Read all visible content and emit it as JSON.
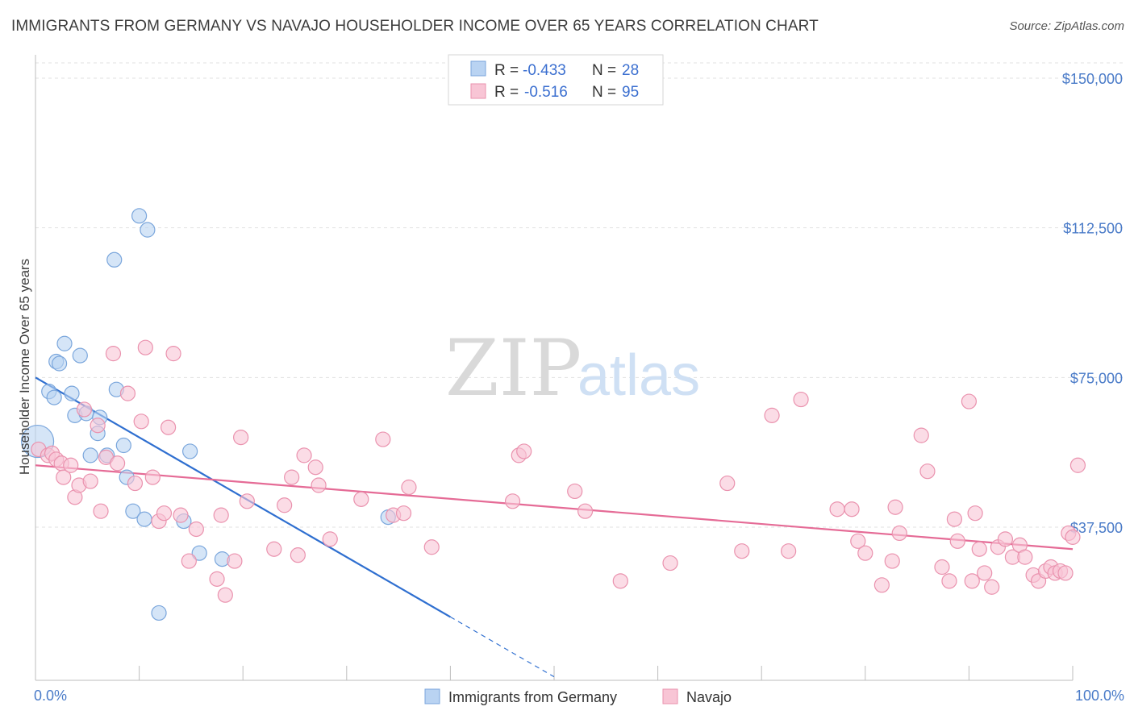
{
  "title": "IMMIGRANTS FROM GERMANY VS NAVAJO HOUSEHOLDER INCOME OVER 65 YEARS CORRELATION CHART",
  "source": "Source: ZipAtlas.com",
  "watermark": {
    "zip": "ZIP",
    "atlas": "atlas"
  },
  "colors": {
    "blue_fill": "#b9d3f2",
    "blue_stroke": "#7aa6dc",
    "blue_line": "#2f6fd0",
    "pink_fill": "#f8c5d5",
    "pink_stroke": "#ea92ae",
    "pink_line": "#e56b96",
    "grid": "#e1e1e1",
    "axis_text": "#4a7bc8"
  },
  "legend": {
    "rows": [
      {
        "r_label": "R =",
        "r_value": "-0.433",
        "n_label": "N =",
        "n_value": "28"
      },
      {
        "r_label": "R =",
        "r_value": "-0.516",
        "n_label": "N =",
        "n_value": "95"
      }
    ]
  },
  "bottom_legend": [
    "Immigrants from Germany",
    "Navajo"
  ],
  "chart_data": {
    "type": "scatter",
    "xlabel": "",
    "ylabel": "Householder Income Over 65 years",
    "xlim": [
      0,
      100
    ],
    "ylim": [
      0,
      155000
    ],
    "x_tick_labels": [
      "0.0%",
      "100.0%"
    ],
    "y_ticks": [
      37500,
      75000,
      112500,
      150000
    ],
    "y_tick_labels": [
      "$37,500",
      "$75,000",
      "$112,500",
      "$150,000"
    ],
    "grid": "horizontal dashed",
    "legend_position": "top-center",
    "series": [
      {
        "name": "Immigrants from Germany",
        "color": "blue",
        "R": -0.433,
        "N": 28,
        "trend": {
          "x": [
            0,
            40
          ],
          "y": [
            75000,
            15000
          ],
          "dashed_to": [
            50,
            0
          ]
        },
        "points": [
          [
            0.2,
            59000,
            3
          ],
          [
            1.3,
            71500,
            1
          ],
          [
            1.8,
            70000,
            1
          ],
          [
            2.0,
            79000,
            1
          ],
          [
            2.3,
            78500,
            1
          ],
          [
            2.8,
            83500,
            1
          ],
          [
            3.5,
            71000,
            1
          ],
          [
            3.8,
            65500,
            1
          ],
          [
            4.3,
            80500,
            1
          ],
          [
            4.9,
            66000,
            1
          ],
          [
            5.3,
            55500,
            1
          ],
          [
            6.2,
            65000,
            1
          ],
          [
            6.0,
            61000,
            1
          ],
          [
            6.9,
            55500,
            1
          ],
          [
            7.6,
            104500,
            1
          ],
          [
            7.8,
            72000,
            1
          ],
          [
            8.5,
            58000,
            1
          ],
          [
            8.8,
            50000,
            1
          ],
          [
            9.4,
            41500,
            1
          ],
          [
            10.0,
            115500,
            1
          ],
          [
            10.5,
            39500,
            1
          ],
          [
            10.8,
            112000,
            1
          ],
          [
            11.9,
            16000,
            1
          ],
          [
            14.3,
            39000,
            1
          ],
          [
            14.9,
            56500,
            1
          ],
          [
            15.8,
            31000,
            1
          ],
          [
            18.0,
            29500,
            1
          ],
          [
            34.0,
            40000,
            1
          ]
        ]
      },
      {
        "name": "Navajo",
        "color": "pink",
        "R": -0.516,
        "N": 95,
        "trend": {
          "x": [
            0,
            100
          ],
          "y": [
            53000,
            32000
          ]
        },
        "points": [
          [
            0.3,
            57000,
            1
          ],
          [
            1.2,
            55500,
            1
          ],
          [
            1.6,
            56000,
            1
          ],
          [
            2.0,
            54500,
            1
          ],
          [
            2.5,
            53500,
            1
          ],
          [
            2.7,
            50000,
            1
          ],
          [
            3.4,
            53000,
            1
          ],
          [
            3.8,
            45000,
            1
          ],
          [
            4.2,
            48000,
            1
          ],
          [
            4.7,
            67000,
            1
          ],
          [
            5.3,
            49000,
            1
          ],
          [
            6.0,
            63000,
            1
          ],
          [
            6.3,
            41500,
            1
          ],
          [
            6.8,
            55000,
            1
          ],
          [
            7.5,
            81000,
            1
          ],
          [
            7.9,
            53500,
            1
          ],
          [
            8.9,
            71000,
            1
          ],
          [
            9.6,
            48500,
            1
          ],
          [
            10.2,
            64000,
            1
          ],
          [
            10.6,
            82500,
            1
          ],
          [
            11.3,
            50000,
            1
          ],
          [
            11.9,
            39000,
            1
          ],
          [
            12.4,
            41000,
            1
          ],
          [
            12.8,
            62500,
            1
          ],
          [
            13.3,
            81000,
            1
          ],
          [
            14.0,
            40500,
            1
          ],
          [
            14.8,
            29000,
            1
          ],
          [
            15.5,
            37000,
            1
          ],
          [
            17.5,
            24500,
            1
          ],
          [
            17.9,
            40500,
            1
          ],
          [
            18.3,
            20500,
            1
          ],
          [
            19.2,
            29000,
            1
          ],
          [
            19.8,
            60000,
            1
          ],
          [
            20.4,
            44000,
            1
          ],
          [
            23.0,
            32000,
            1
          ],
          [
            24.0,
            43000,
            1
          ],
          [
            24.7,
            50000,
            1
          ],
          [
            25.3,
            30500,
            1
          ],
          [
            25.9,
            55500,
            1
          ],
          [
            27.0,
            52500,
            1
          ],
          [
            27.3,
            48000,
            1
          ],
          [
            28.4,
            34500,
            1
          ],
          [
            31.4,
            44500,
            1
          ],
          [
            33.5,
            59500,
            1
          ],
          [
            34.5,
            40500,
            1
          ],
          [
            35.5,
            41000,
            1
          ],
          [
            36.0,
            47500,
            1
          ],
          [
            38.2,
            32500,
            1
          ],
          [
            46.0,
            44000,
            1
          ],
          [
            46.6,
            55500,
            1
          ],
          [
            47.1,
            56500,
            1
          ],
          [
            52.0,
            46500,
            1
          ],
          [
            53.0,
            41500,
            1
          ],
          [
            56.4,
            24000,
            1
          ],
          [
            61.2,
            28500,
            1
          ],
          [
            66.7,
            48500,
            1
          ],
          [
            68.1,
            31500,
            1
          ],
          [
            71.0,
            65500,
            1
          ],
          [
            72.6,
            31500,
            1
          ],
          [
            73.8,
            69500,
            1
          ],
          [
            77.3,
            42000,
            1
          ],
          [
            78.7,
            42000,
            1
          ],
          [
            79.3,
            34000,
            1
          ],
          [
            80.0,
            31000,
            1
          ],
          [
            81.6,
            23000,
            1
          ],
          [
            82.6,
            29000,
            1
          ],
          [
            82.9,
            42500,
            1
          ],
          [
            83.3,
            36000,
            1
          ],
          [
            85.4,
            60500,
            1
          ],
          [
            86.0,
            51500,
            1
          ],
          [
            87.4,
            27500,
            1
          ],
          [
            88.1,
            24000,
            1
          ],
          [
            88.6,
            39500,
            1
          ],
          [
            88.9,
            34000,
            1
          ],
          [
            90.0,
            69000,
            1
          ],
          [
            90.3,
            24000,
            1
          ],
          [
            90.6,
            41000,
            1
          ],
          [
            91.0,
            32000,
            1
          ],
          [
            91.5,
            26000,
            1
          ],
          [
            92.2,
            22500,
            1
          ],
          [
            92.8,
            32500,
            1
          ],
          [
            93.5,
            34500,
            1
          ],
          [
            94.2,
            30000,
            1
          ],
          [
            94.9,
            33000,
            1
          ],
          [
            95.4,
            30000,
            1
          ],
          [
            96.2,
            25500,
            1
          ],
          [
            96.7,
            24000,
            1
          ],
          [
            97.4,
            26500,
            1
          ],
          [
            97.9,
            27500,
            1
          ],
          [
            98.3,
            26000,
            1
          ],
          [
            98.8,
            26500,
            1
          ],
          [
            99.3,
            26000,
            1
          ],
          [
            99.6,
            36000,
            1
          ],
          [
            100.0,
            35000,
            1
          ],
          [
            100.5,
            53000,
            1
          ]
        ]
      }
    ]
  }
}
